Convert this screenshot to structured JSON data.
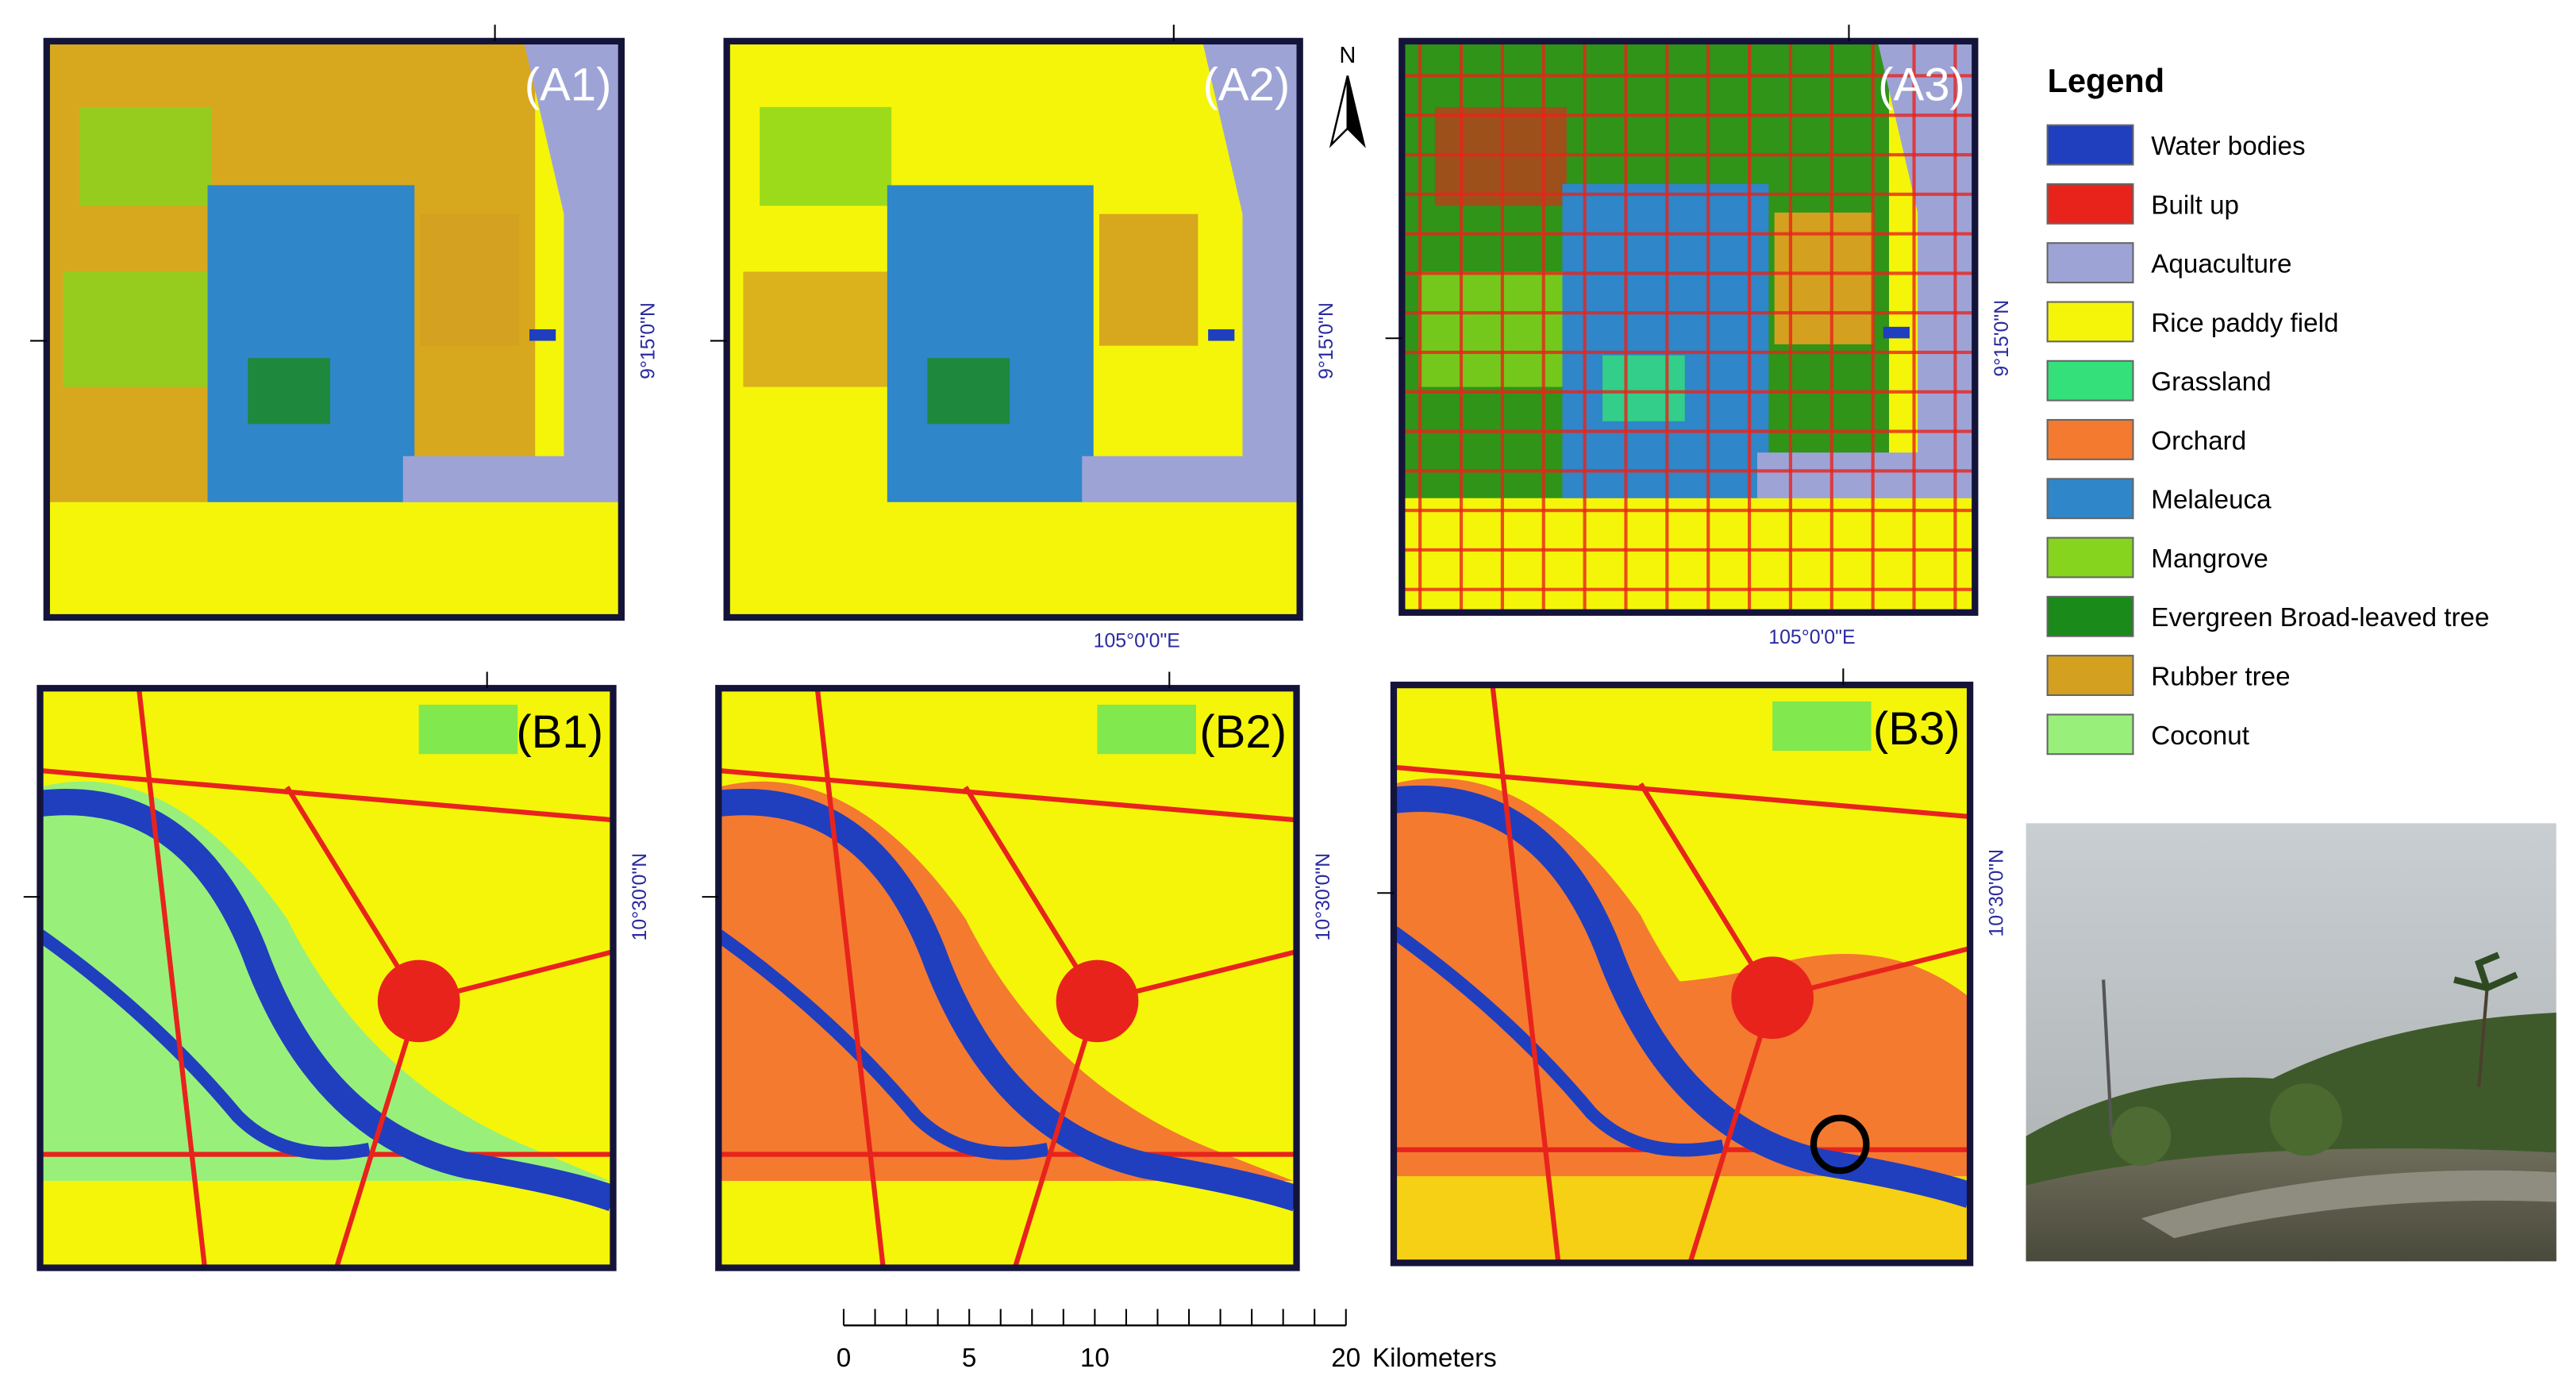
{
  "north_arrow": "N",
  "panels": [
    {
      "label": "(A1)",
      "lat_label": "9°15'0\"N"
    },
    {
      "label": "(A2)",
      "lon_label": "105°0'0\"E",
      "lat_label": "9°15'0\"N"
    },
    {
      "label": "(A3)",
      "lon_label": "105°0'0\"E",
      "lat_label": "9°15'0\"N"
    },
    {
      "label": "(B1)",
      "lat_label": "10°30'0\"N"
    },
    {
      "label": "(B2)",
      "lat_label": "10°30'0\"N"
    },
    {
      "label": "(B3)",
      "lat_label": "10°30'0\"N"
    }
  ],
  "legend": {
    "title": "Legend",
    "items": [
      {
        "label": "Water bodies",
        "color": "#1f3fbf"
      },
      {
        "label": "Built up",
        "color": "#e8231c"
      },
      {
        "label": "Aquaculture",
        "color": "#9ea3d6"
      },
      {
        "label": "Rice paddy field",
        "color": "#f5f50a"
      },
      {
        "label": "Grassland",
        "color": "#33e07a"
      },
      {
        "label": "Orchard",
        "color": "#f47a30"
      },
      {
        "label": "Melaleuca",
        "color": "#2f86c8"
      },
      {
        "label": "Mangrove",
        "color": "#86d41e"
      },
      {
        "label": "Evergreen Broad-leaved tree",
        "color": "#1a8a1a"
      },
      {
        "label": "Rubber tree",
        "color": "#d4a020"
      },
      {
        "label": "Coconut",
        "color": "#98f07a"
      }
    ]
  },
  "scale_bar": {
    "ticks": [
      "0",
      "5",
      "10",
      "20"
    ],
    "unit": "Kilometers"
  }
}
